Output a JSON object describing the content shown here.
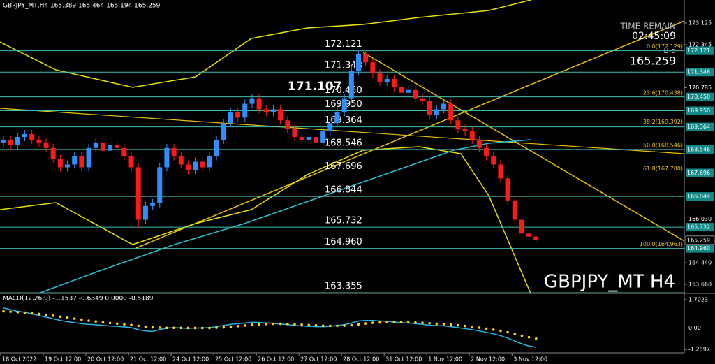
{
  "chart_data": [
    {
      "type": "candlestick",
      "title": "GBPJPY_MT H4",
      "header": "GBPJPY_MT,H4  165.389 165.464 165.194 165.259",
      "time_remain_label": "TIME REMAIN",
      "time_remain": "02:45:09",
      "bid_label": "Bid",
      "bid": 165.259,
      "annotation": "171.107",
      "up_color": "#2f8fff",
      "down_color": "#ff1a1a",
      "level_color": "#3fbfb0",
      "ylim": [
        163.33,
        173.96
      ],
      "yticks": [
        173.125,
        172.345,
        170.785,
        {
          "value": 166.03,
          "label": "166.030"
        },
        {
          "value": 164.44,
          "label": "164.440"
        },
        {
          "value": 163.66,
          "label": "163.660"
        }
      ],
      "levels": [
        172.121,
        171.348,
        {
          "value": 170.45,
          "label": "170.450"
        },
        {
          "value": 169.95,
          "label": "169.950"
        },
        169.364,
        168.546,
        167.696,
        166.844,
        165.732,
        {
          "value": 164.96,
          "label": "164.960"
        },
        163.355
      ],
      "fib_labels": [
        {
          "value": 172.129,
          "label": "0.0(172.129)"
        },
        {
          "value": 170.438,
          "label": "23.6(170.438)"
        },
        {
          "value": 169.392,
          "label": "38.2(169.392)"
        },
        {
          "value": 168.546,
          "label": "50.0(168.546)"
        },
        {
          "value": 167.7,
          "label": "61.8(167.700)"
        },
        {
          "value": 164.963,
          "label": "100.0(164.963)"
        }
      ],
      "xticks": [
        {
          "value": 0,
          "label": "18 Oct 2022"
        },
        {
          "value": 6,
          "label": "19 Oct 12:00"
        },
        {
          "value": 12,
          "label": "20 Oct 12:00"
        },
        {
          "value": 18,
          "label": "21 Oct 12:00"
        },
        {
          "value": 24,
          "label": "24 Oct 12:00"
        },
        {
          "value": 30,
          "label": "25 Oct 12:00"
        },
        {
          "value": 36,
          "label": "26 Oct 12:00"
        },
        {
          "value": 42,
          "label": "27 Oct 12:00"
        },
        {
          "value": 48,
          "label": "28 Oct 12:00"
        },
        {
          "value": 54,
          "label": "31 Oct 12:00"
        },
        {
          "value": 60,
          "label": "1 Nov 12:00"
        },
        {
          "value": 66,
          "label": "2 Nov 12:00"
        },
        {
          "value": 72,
          "label": "3 Nov 12:00"
        }
      ],
      "open": [
        168.8,
        168.9,
        168.7,
        169.0,
        169.1,
        168.9,
        168.8,
        168.6,
        168.2,
        167.9,
        168.0,
        168.3,
        167.9,
        168.6,
        168.8,
        168.5,
        168.7,
        168.6,
        168.3,
        167.9,
        166.0,
        166.5,
        166.6,
        167.9,
        168.6,
        168.3,
        168.0,
        167.8,
        168.1,
        167.9,
        168.3,
        168.9,
        169.5,
        169.9,
        169.7,
        170.2,
        170.4,
        170.0,
        169.9,
        170.0,
        169.6,
        169.3,
        169.0,
        168.9,
        169.0,
        168.8,
        169.2,
        169.5,
        169.9,
        170.4,
        171.4,
        172.0,
        171.7,
        171.3,
        171.0,
        171.1,
        170.8,
        170.6,
        170.7,
        170.4,
        170.3,
        169.8,
        170.0,
        170.2,
        169.6,
        169.3,
        169.2,
        168.9,
        168.6,
        168.3,
        168.0,
        167.5,
        166.7,
        166.0,
        165.5,
        165.389
      ],
      "high": [
        169.05,
        169.05,
        169.15,
        169.25,
        169.25,
        169.05,
        168.95,
        168.75,
        168.35,
        168.15,
        168.45,
        168.45,
        168.75,
        168.95,
        168.95,
        168.85,
        168.85,
        168.75,
        168.45,
        168.05,
        166.65,
        166.75,
        168.05,
        168.75,
        168.75,
        168.45,
        168.15,
        168.25,
        168.25,
        168.45,
        169.05,
        169.65,
        170.05,
        170.05,
        170.35,
        170.55,
        170.55,
        170.15,
        170.15,
        170.15,
        169.75,
        169.45,
        169.15,
        169.15,
        169.15,
        169.35,
        169.65,
        170.05,
        170.55,
        171.55,
        172.12,
        172.15,
        171.85,
        171.45,
        171.25,
        171.25,
        170.95,
        170.85,
        170.85,
        170.55,
        170.45,
        170.15,
        170.35,
        170.35,
        169.75,
        169.45,
        169.35,
        169.05,
        168.75,
        168.45,
        168.15,
        167.65,
        166.85,
        166.15,
        165.65,
        165.464
      ],
      "low": [
        168.65,
        168.55,
        168.55,
        168.85,
        168.75,
        168.65,
        168.45,
        168.05,
        167.75,
        167.75,
        167.85,
        167.75,
        167.75,
        168.45,
        168.35,
        168.35,
        168.45,
        168.15,
        167.75,
        165.7,
        165.85,
        166.35,
        166.45,
        167.75,
        168.15,
        167.85,
        167.65,
        167.65,
        167.75,
        167.75,
        168.15,
        168.75,
        169.35,
        169.55,
        169.55,
        170.05,
        169.85,
        169.75,
        169.75,
        169.45,
        169.15,
        168.85,
        168.75,
        168.75,
        168.65,
        168.65,
        169.05,
        169.35,
        169.75,
        170.25,
        171.25,
        171.55,
        171.15,
        170.85,
        170.85,
        170.65,
        170.45,
        170.45,
        170.25,
        170.15,
        169.65,
        169.65,
        169.85,
        169.45,
        169.15,
        169.05,
        168.75,
        168.45,
        168.15,
        167.85,
        167.35,
        166.55,
        165.85,
        165.35,
        165.24,
        165.194
      ],
      "close": [
        168.9,
        168.7,
        169.0,
        169.1,
        168.9,
        168.8,
        168.6,
        168.2,
        167.9,
        168.0,
        168.3,
        167.9,
        168.6,
        168.8,
        168.5,
        168.7,
        168.6,
        168.3,
        167.9,
        166.0,
        166.5,
        166.6,
        167.9,
        168.6,
        168.3,
        168.0,
        167.8,
        168.1,
        167.9,
        168.3,
        168.9,
        169.5,
        169.9,
        169.7,
        170.2,
        170.4,
        170.0,
        169.9,
        170.0,
        169.6,
        169.3,
        169.0,
        168.9,
        169.0,
        168.8,
        169.2,
        169.5,
        169.9,
        170.4,
        171.4,
        172.0,
        171.7,
        171.3,
        171.0,
        171.1,
        170.8,
        170.6,
        170.7,
        170.4,
        170.3,
        169.8,
        170.0,
        170.2,
        169.6,
        169.3,
        169.2,
        168.9,
        168.6,
        168.3,
        168.0,
        167.5,
        166.7,
        166.0,
        165.5,
        165.389,
        165.259
      ]
    },
    {
      "type": "macd",
      "title": "MACD(12,26,9) -1.1537 -0.6349 0.0000 -0.5189",
      "ylim": [
        -1.49,
        2.034
      ],
      "yticks": [
        1.7023,
        {
          "value": 0,
          "label": "0.00"
        },
        -1.2897
      ],
      "series": [
        {
          "name": "MACD",
          "color": "#22b8e8",
          "values": [
            1.2,
            1.1,
            1.0,
            0.95,
            0.85,
            0.75,
            0.65,
            0.55,
            0.45,
            0.38,
            0.32,
            0.25,
            0.22,
            0.2,
            0.15,
            0.12,
            0.1,
            0.06,
            0.02,
            -0.1,
            -0.18,
            -0.2,
            -0.1,
            0.0,
            0.02,
            0.0,
            -0.02,
            0.0,
            0.0,
            0.02,
            0.08,
            0.15,
            0.22,
            0.26,
            0.3,
            0.34,
            0.33,
            0.3,
            0.28,
            0.24,
            0.2,
            0.15,
            0.12,
            0.1,
            0.08,
            0.08,
            0.1,
            0.15,
            0.2,
            0.3,
            0.42,
            0.45,
            0.45,
            0.42,
            0.4,
            0.36,
            0.32,
            0.3,
            0.26,
            0.22,
            0.16,
            0.14,
            0.13,
            0.08,
            0.02,
            -0.04,
            -0.1,
            -0.18,
            -0.26,
            -0.35,
            -0.46,
            -0.6,
            -0.78,
            -0.95,
            -1.08,
            -1.1537
          ]
        },
        {
          "name": "Signal",
          "color": "#ffd21a",
          "values": [
            1.0,
            0.98,
            0.95,
            0.92,
            0.88,
            0.84,
            0.79,
            0.74,
            0.68,
            0.62,
            0.56,
            0.5,
            0.44,
            0.39,
            0.34,
            0.3,
            0.26,
            0.22,
            0.18,
            0.13,
            0.08,
            0.04,
            0.02,
            0.01,
            0.01,
            0.01,
            0.0,
            0.0,
            0.0,
            0.0,
            0.02,
            0.04,
            0.08,
            0.11,
            0.15,
            0.19,
            0.22,
            0.24,
            0.25,
            0.25,
            0.24,
            0.22,
            0.2,
            0.18,
            0.16,
            0.14,
            0.13,
            0.13,
            0.14,
            0.17,
            0.22,
            0.27,
            0.31,
            0.33,
            0.34,
            0.35,
            0.35,
            0.34,
            0.33,
            0.31,
            0.28,
            0.25,
            0.23,
            0.2,
            0.16,
            0.12,
            0.07,
            0.02,
            -0.04,
            -0.1,
            -0.17,
            -0.26,
            -0.36,
            -0.46,
            -0.55,
            -0.6349
          ]
        }
      ]
    }
  ]
}
